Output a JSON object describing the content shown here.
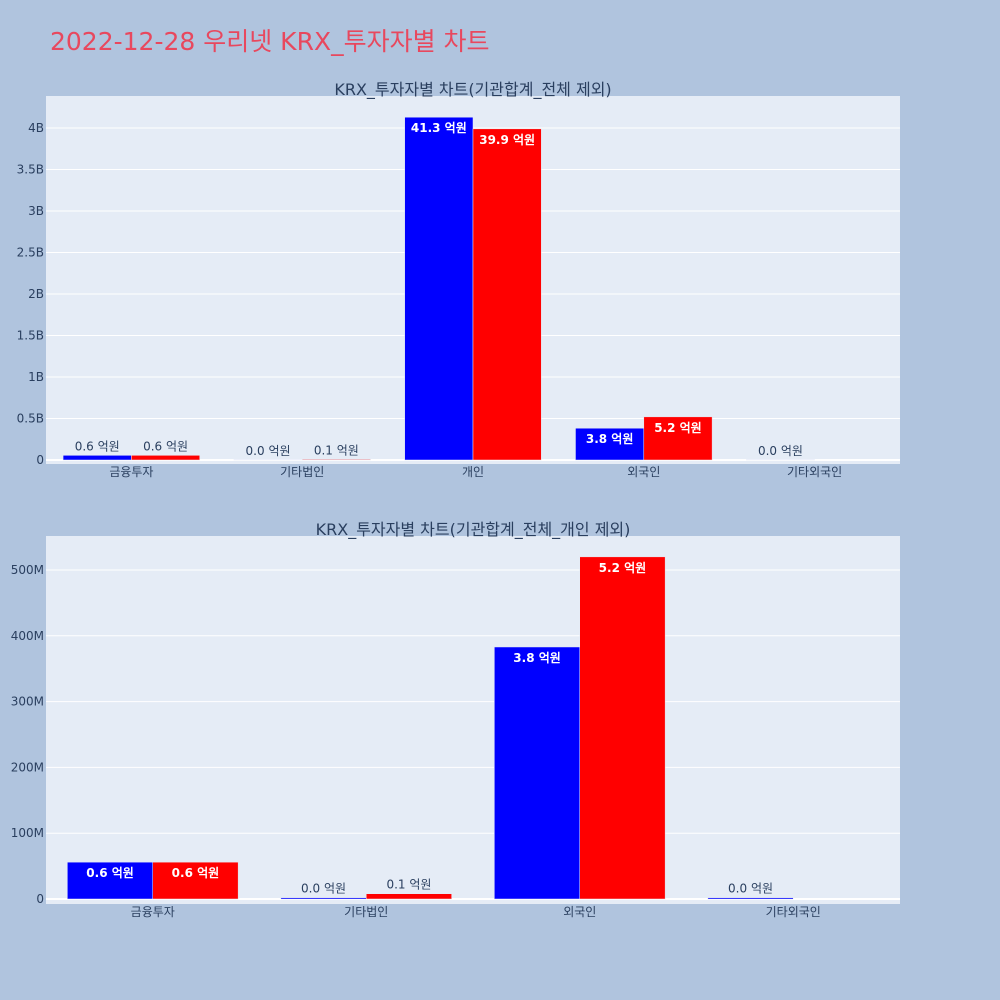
{
  "page": {
    "title": "2022-12-28 우리넷 KRX_투자자별 차트"
  },
  "chart_data": [
    {
      "type": "bar",
      "title": "KRX_투자자별 차트(기관합계_전체 제외)",
      "categories": [
        "금융투자",
        "기타법인",
        "개인",
        "외국인",
        "기타외국인"
      ],
      "series": [
        {
          "color": "#0000ff",
          "values": [
            56000000,
            2000000,
            4130000000,
            383000000,
            2000000
          ],
          "labels": [
            "0.6 억원",
            "0.0 억원",
            "41.3 억원",
            "3.8 억원",
            "0.0 억원"
          ]
        },
        {
          "color": "#ff0000",
          "values": [
            56000000,
            8000000,
            3990000000,
            520000000,
            0
          ],
          "labels": [
            "0.6 억원",
            "0.1 억원",
            "39.9 억원",
            "5.2 억원",
            ""
          ]
        }
      ],
      "yticks": [
        0,
        500000000,
        1000000000,
        1500000000,
        2000000000,
        2500000000,
        3000000000,
        3500000000,
        4000000000
      ],
      "ytick_labels": [
        "0",
        "0.5B",
        "1B",
        "1.5B",
        "2B",
        "2.5B",
        "3B",
        "3.5B",
        "4B"
      ],
      "ylim": [
        0,
        4400000000
      ],
      "grid": true
    },
    {
      "type": "bar",
      "title": "KRX_투자자별 차트(기관합계_전체_개인 제외)",
      "categories": [
        "금융투자",
        "기타법인",
        "외국인",
        "기타외국인"
      ],
      "series": [
        {
          "color": "#0000ff",
          "values": [
            56000000,
            2000000,
            383000000,
            2000000
          ],
          "labels": [
            "0.6 억원",
            "0.0 억원",
            "3.8 억원",
            "0.0 억원"
          ]
        },
        {
          "color": "#ff0000",
          "values": [
            56000000,
            8000000,
            520000000,
            0
          ],
          "labels": [
            "0.6 억원",
            "0.1 억원",
            "5.2 억원",
            ""
          ]
        }
      ],
      "yticks": [
        0,
        100000000,
        200000000,
        300000000,
        400000000,
        500000000
      ],
      "ytick_labels": [
        "0",
        "100M",
        "200M",
        "300M",
        "400M",
        "500M"
      ],
      "ylim": [
        0,
        550000000
      ],
      "grid": true
    }
  ]
}
